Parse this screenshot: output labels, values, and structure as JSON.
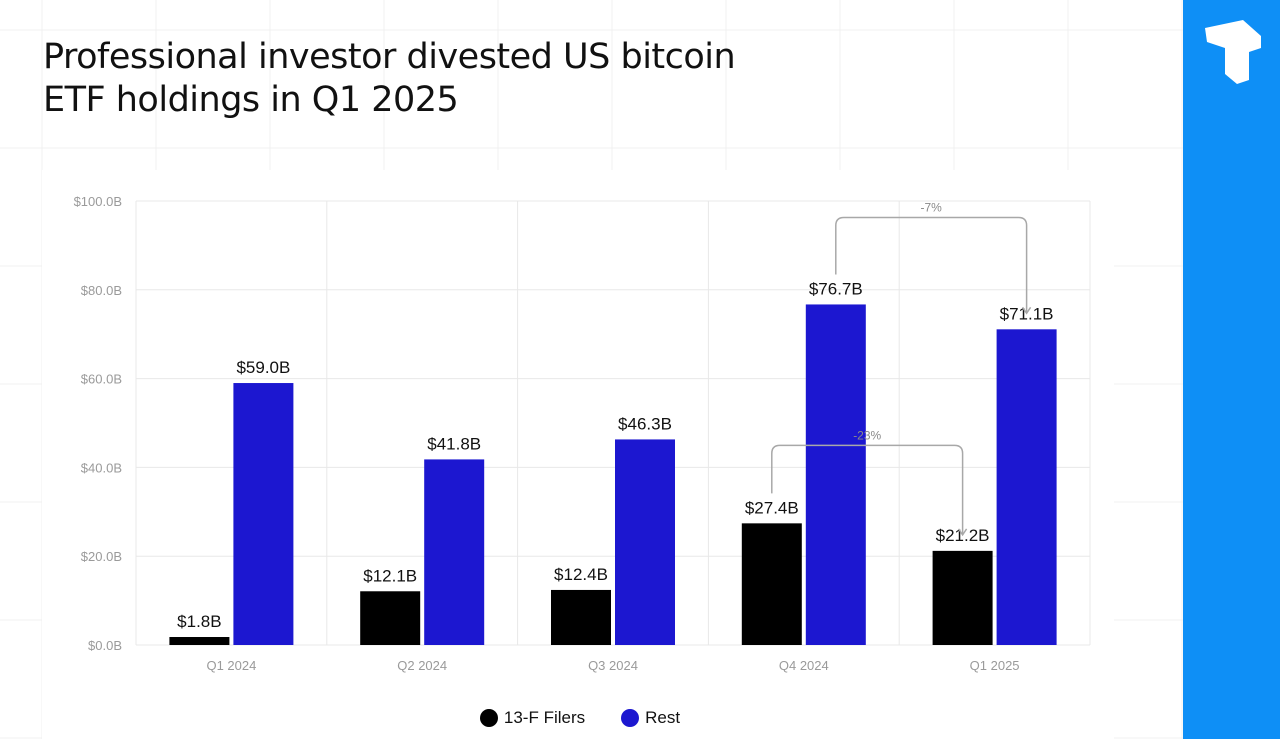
{
  "title_lines": [
    "Professional investor divested US bitcoin",
    "ETF holdings in Q1 2025"
  ],
  "colors": {
    "series_13f": "#000000",
    "series_rest": "#1c17d0",
    "brand": "#0e8ff6",
    "grid": "#e8e8e8",
    "axis_text": "#9a9a9a",
    "annotation": "#a8a8a8"
  },
  "brand_icon": "brand-logo-icon",
  "chart_data": {
    "type": "bar",
    "title": "Professional investor divested US bitcoin ETF holdings in Q1 2025",
    "categories": [
      "Q1 2024",
      "Q2 2024",
      "Q3 2024",
      "Q4 2024",
      "Q1 2025"
    ],
    "series": [
      {
        "name": "13-F Filers",
        "values": [
          1.8,
          12.1,
          12.4,
          27.4,
          21.2
        ],
        "labels": [
          "$1.8B",
          "$12.1B",
          "$12.4B",
          "$27.4B",
          "$21.2B"
        ]
      },
      {
        "name": "Rest",
        "values": [
          59.0,
          41.8,
          46.3,
          76.7,
          71.1
        ],
        "labels": [
          "$59.0B",
          "$41.8B",
          "$46.3B",
          "$76.7B",
          "$71.1B"
        ]
      }
    ],
    "ylim": [
      0,
      100
    ],
    "yticks": [
      0,
      20,
      40,
      60,
      80,
      100
    ],
    "ytick_labels": [
      "$0.0B",
      "$20.0B",
      "$40.0B",
      "$60.0B",
      "$80.0B",
      "$100.0B"
    ],
    "xlabel": "",
    "ylabel": "",
    "legend": {
      "position": "bottom-center",
      "entries": [
        "13-F Filers",
        "Rest"
      ]
    },
    "annotations": [
      {
        "label": "-23%",
        "from": {
          "category": "Q4 2024",
          "series": "13-F Filers"
        },
        "to": {
          "category": "Q1 2025",
          "series": "13-F Filers"
        }
      },
      {
        "label": "-7%",
        "from": {
          "category": "Q4 2024",
          "series": "Rest"
        },
        "to": {
          "category": "Q1 2025",
          "series": "Rest"
        }
      }
    ],
    "grid": true
  }
}
